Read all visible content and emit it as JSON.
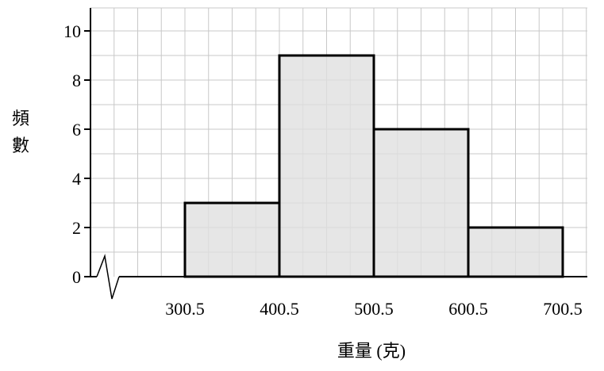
{
  "chart_data": {
    "type": "bar",
    "subtype": "histogram",
    "bins": [
      {
        "from": 300.5,
        "to": 400.5,
        "value": 3
      },
      {
        "from": 400.5,
        "to": 500.5,
        "value": 9
      },
      {
        "from": 500.5,
        "to": 600.5,
        "value": 6
      },
      {
        "from": 600.5,
        "to": 700.5,
        "value": 2
      }
    ],
    "x_tick_labels": [
      "300.5",
      "400.5",
      "500.5",
      "600.5",
      "700.5"
    ],
    "y_tick_labels": [
      "0",
      "2",
      "4",
      "6",
      "8",
      "10"
    ],
    "xlabel": "重量 (克)",
    "ylabel_chars": [
      "頻",
      "數"
    ],
    "xlim": [
      200.5,
      725.5
    ],
    "ylim": [
      0,
      10
    ],
    "grid": true,
    "axis_break": true,
    "colors": {
      "bar_fill": "#e0e0e0",
      "bar_stroke": "#000000",
      "grid": "#c8c8c8"
    }
  }
}
